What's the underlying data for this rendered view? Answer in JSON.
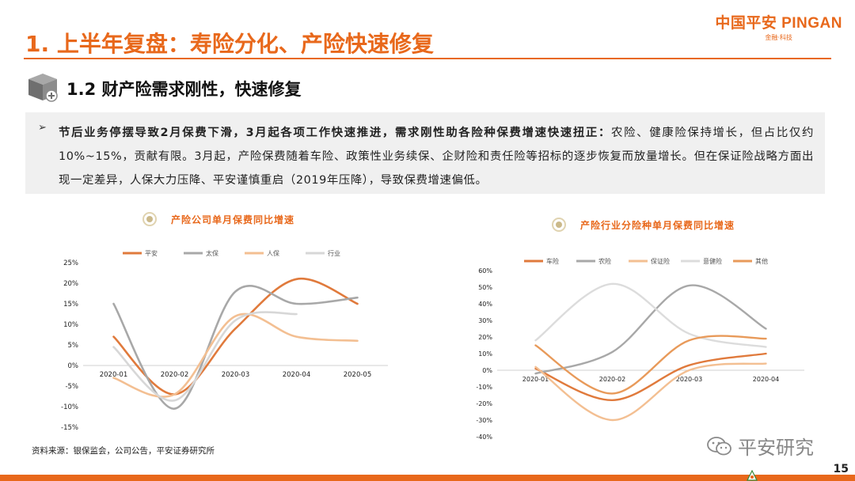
{
  "logo": {
    "main": "中国平安 PINGAN",
    "sub": "金融·科技"
  },
  "main_title": "1. 上半年复盘：寿险分化、产险快速修复",
  "section_title": "1.2 财产险需求刚性，快速修复",
  "summary": {
    "bold": "节后业务停摆导致2月保费下滑，3月起各项工作快速推进，需求刚性助各险种保费增速快速扭正：",
    "rest": "农险、健康险保持增长，但占比仅约10%~15%，贡献有限。3月起，产险保费随着车险、政策性业务续保、企财险和责任险等招标的逐步恢复而放量增长。但在保证险战略方面出现一定差异，人保大力压降、平安谨慎重启（2019年压降），导致保费增速偏低。"
  },
  "chart_data": [
    {
      "type": "line",
      "title": "产险公司单月保费同比增速",
      "categories": [
        "2020-01",
        "2020-02",
        "2020-03",
        "2020-04",
        "2020-05"
      ],
      "y_ticks": [
        "25%",
        "20%",
        "15%",
        "10%",
        "5%",
        "0%",
        "-5%",
        "-10%",
        "-15%"
      ],
      "ylim": [
        -15,
        25
      ],
      "series": [
        {
          "name": "平安",
          "color": "#e07a3c",
          "values": [
            7,
            -7,
            9,
            21,
            15
          ]
        },
        {
          "name": "太保",
          "color": "#a8a8a8",
          "values": [
            15,
            -10.5,
            18,
            15,
            16.5
          ]
        },
        {
          "name": "人保",
          "color": "#f3bf92",
          "values": [
            -3,
            -7,
            12,
            7,
            6
          ]
        },
        {
          "name": "行业",
          "color": "#d7d7d7",
          "values": [
            4.5,
            -8.5,
            11,
            12.5,
            null
          ]
        }
      ]
    },
    {
      "type": "line",
      "title": "产险行业分险种单月保费同比增速",
      "categories": [
        "2020-01",
        "2020-02",
        "2020-03",
        "2020-04"
      ],
      "y_ticks": [
        "60%",
        "50%",
        "40%",
        "30%",
        "20%",
        "10%",
        "0%",
        "-10%",
        "-20%",
        "-30%",
        "-40%"
      ],
      "ylim": [
        -40,
        60
      ],
      "series": [
        {
          "name": "车险",
          "color": "#e07a3c",
          "values": [
            1,
            -18,
            3,
            10
          ]
        },
        {
          "name": "农险",
          "color": "#a8a8a8",
          "values": [
            -2,
            11,
            51,
            25
          ]
        },
        {
          "name": "保证险",
          "color": "#f3bf92",
          "values": [
            2,
            -30,
            0,
            4
          ]
        },
        {
          "name": "意健险",
          "color": "#dcdcdc",
          "values": [
            18,
            52,
            22,
            14
          ]
        },
        {
          "name": "其他",
          "color": "#e89a5a",
          "values": [
            15,
            -14,
            18,
            19
          ]
        }
      ]
    }
  ],
  "source": "资料来源：银保监会，公司公告，平安证券研究所",
  "watermark": "平安研究",
  "page_number": "15"
}
